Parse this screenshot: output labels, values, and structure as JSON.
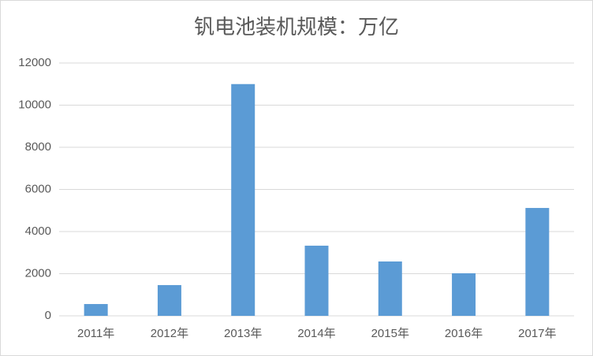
{
  "chart_data": {
    "type": "bar",
    "title": "钒电池装机规模：万亿",
    "categories": [
      "2011年",
      "2012年",
      "2013年",
      "2014年",
      "2015年",
      "2016年",
      "2017年"
    ],
    "values": [
      560,
      1460,
      11000,
      3330,
      2580,
      2020,
      5120
    ],
    "color": "#5b9bd5",
    "ylim": [
      0,
      12000
    ],
    "yticks": [
      0,
      2000,
      4000,
      6000,
      8000,
      10000,
      12000
    ],
    "grid": true
  }
}
